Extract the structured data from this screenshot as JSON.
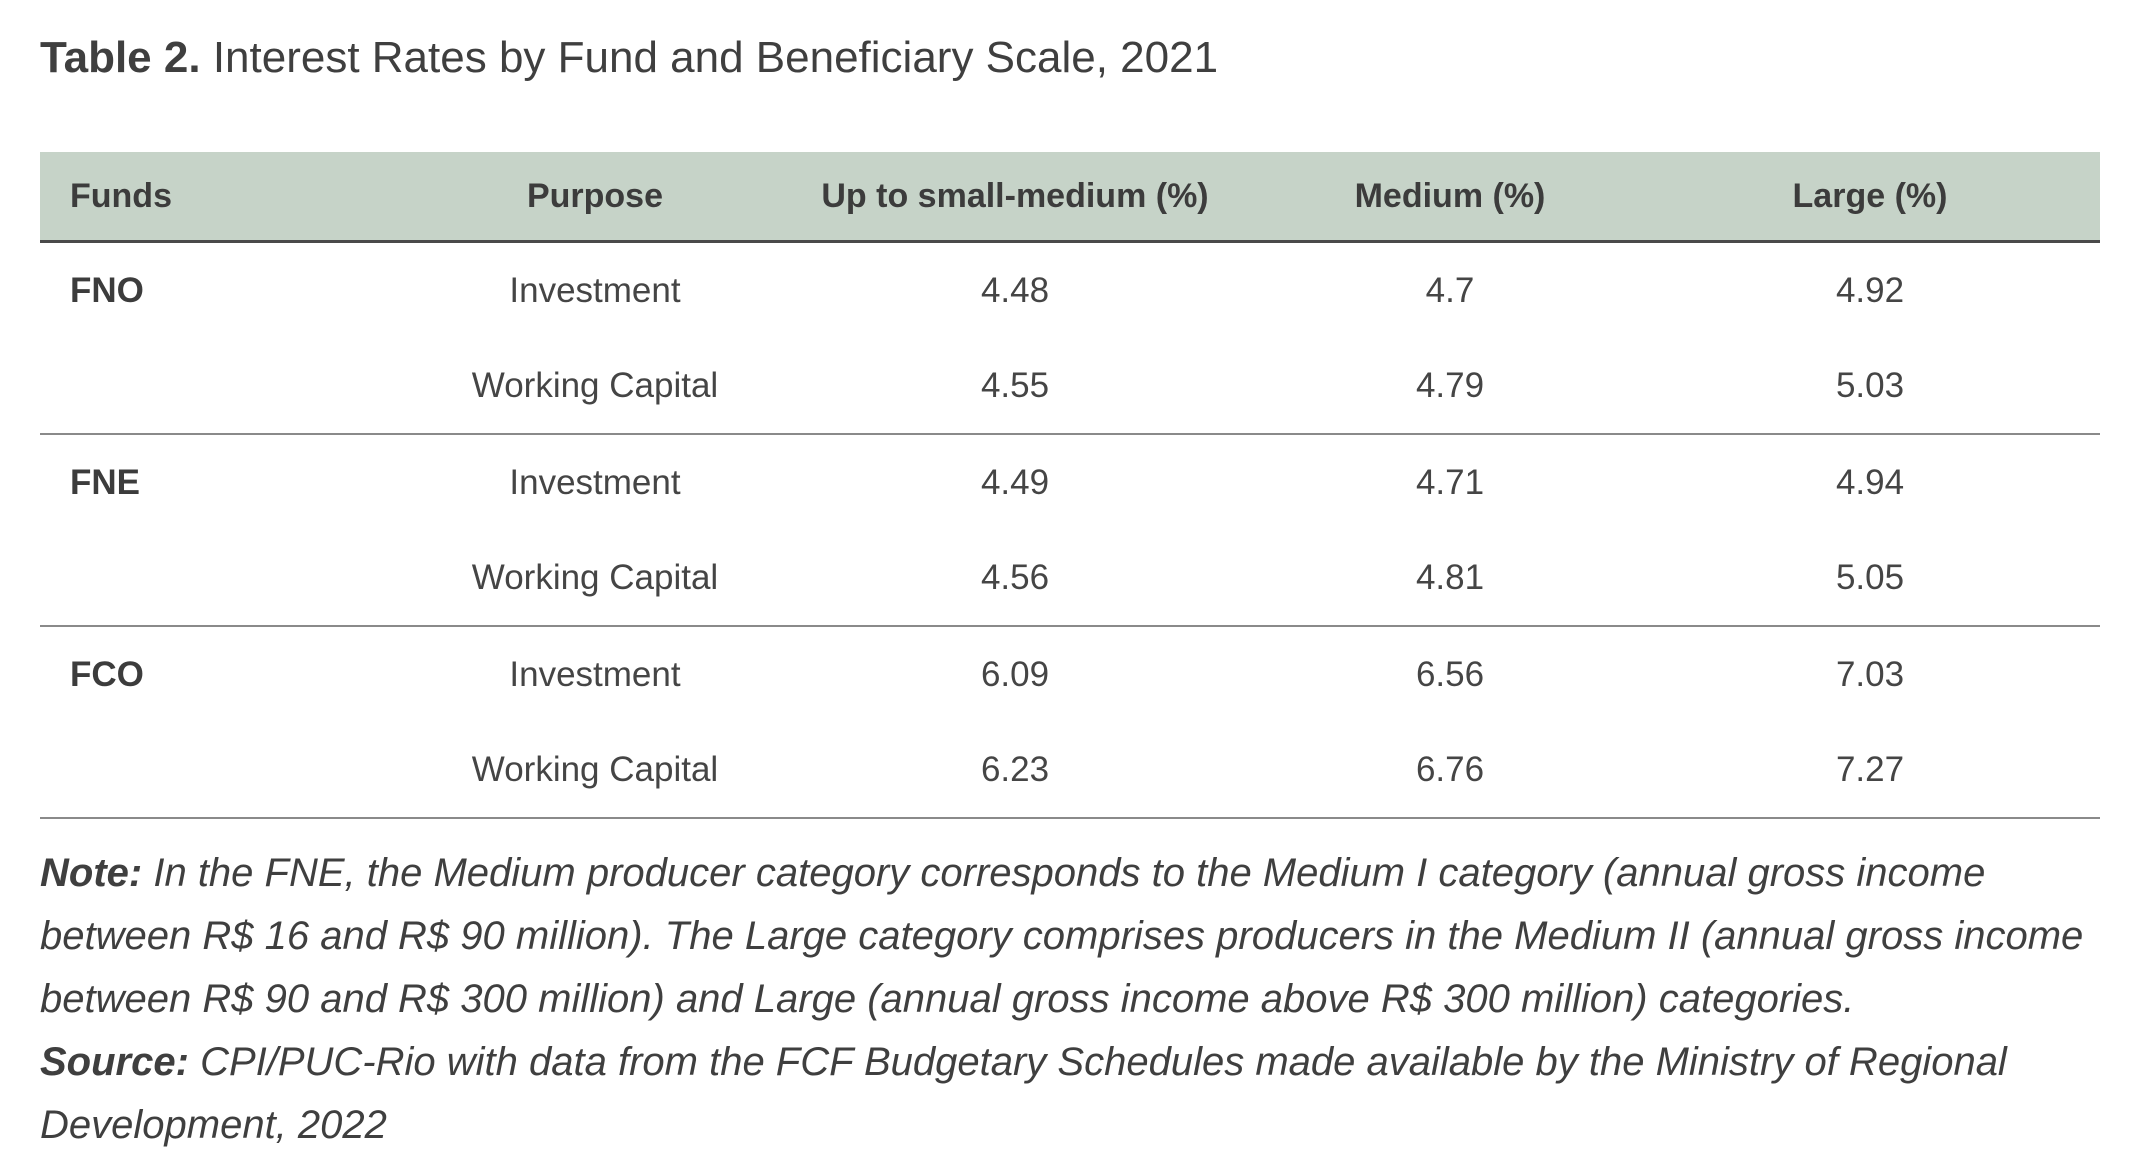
{
  "title": {
    "label": "Table 2.",
    "text": "Interest Rates by Fund and Beneficiary Scale, 2021"
  },
  "table": {
    "headers": [
      "Funds",
      "Purpose",
      "Up to small-medium (%)",
      "Medium (%)",
      "Large (%)"
    ],
    "rows": [
      [
        "FNO",
        "Investment",
        "4.48",
        "4.7",
        "4.92"
      ],
      [
        "",
        "Working Capital",
        "4.55",
        "4.79",
        "5.03"
      ],
      [
        "FNE",
        "Investment",
        "4.49",
        "4.71",
        "4.94"
      ],
      [
        "",
        "Working Capital",
        "4.56",
        "4.81",
        "5.05"
      ],
      [
        "FCO",
        "Investment",
        "6.09",
        "6.56",
        "7.03"
      ],
      [
        "",
        "Working Capital",
        "6.23",
        "6.76",
        "7.27"
      ]
    ]
  },
  "note": {
    "label": "Note:",
    "text": "In the FNE, the Medium producer category corresponds to the Medium I category (annual gross income between R$ 16 and R$ 90 million). The Large category comprises producers in the Medium II (annual gross income between R$ 90 and R$ 300 million) and Large (annual gross income above R$ 300 million) categories."
  },
  "source": {
    "label": "Source:",
    "text": "CPI/PUC-Rio with data from the FCF Budgetary Schedules made available by the Ministry of Regional Development, 2022"
  },
  "colors": {
    "header_background": "#c6d3c8",
    "text": "#3c3c3c",
    "rule": "#8a8a8a"
  }
}
